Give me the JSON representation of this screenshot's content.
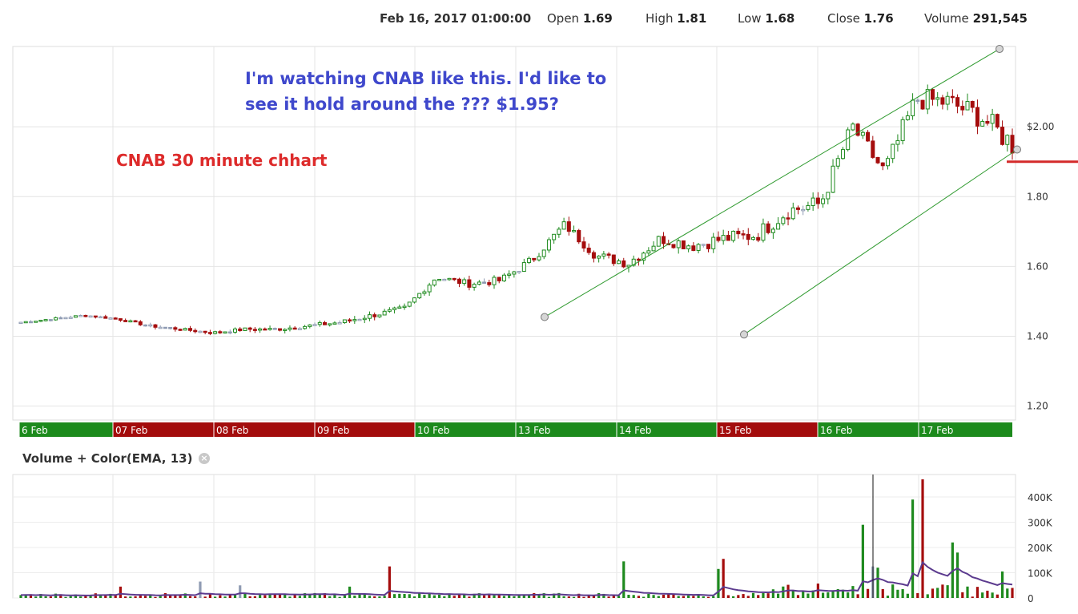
{
  "header": {
    "datetime": "Feb 16, 2017 01:00:00",
    "open_label": "Open",
    "open": "1.69",
    "high_label": "High",
    "high": "1.81",
    "low_label": "Low",
    "low": "1.68",
    "close_label": "Close",
    "close": "1.76",
    "volume_label": "Volume",
    "volume": "291,545"
  },
  "annotations": {
    "line1": "I'm watching CNAB like this.  I'd like to",
    "line2": "see it hold around the ???  $1.95?",
    "chart_label": "CNAB 30 minute chhart"
  },
  "volume_panel": {
    "title": "Volume + Color(EMA, 13)",
    "close_icon": "close-icon"
  },
  "colors": {
    "up": "#1e8a1e",
    "down": "#a50d0d",
    "neutral": "#8f9bb3",
    "trendline": "#2f9a2f",
    "ema": "#5b3a8e",
    "marker": "#d42a2a"
  },
  "chart_data": [
    {
      "type": "candlestick",
      "title": "",
      "y_ticks": [
        "$2.00",
        "1.80",
        "1.60",
        "1.40",
        "1.20"
      ],
      "ylim": [
        1.16,
        2.23
      ],
      "date_labels": [
        {
          "label": "6 Feb",
          "color": "up"
        },
        {
          "label": "07 Feb",
          "color": "down"
        },
        {
          "label": "08 Feb",
          "color": "down"
        },
        {
          "label": "09 Feb",
          "color": "down"
        },
        {
          "label": "10 Feb",
          "color": "up"
        },
        {
          "label": "13 Feb",
          "color": "up"
        },
        {
          "label": "14 Feb",
          "color": "up"
        },
        {
          "label": "15 Feb",
          "color": "down"
        },
        {
          "label": "16 Feb",
          "color": "up"
        },
        {
          "label": "17 Feb",
          "color": "up"
        }
      ],
      "key_prices": [
        1.44,
        1.45,
        1.46,
        1.45,
        1.43,
        1.42,
        1.41,
        1.42,
        1.42,
        1.43,
        1.44,
        1.46,
        1.48,
        1.57,
        1.55,
        1.56,
        1.62,
        1.72,
        1.63,
        1.61,
        1.68,
        1.66,
        1.68,
        1.69,
        1.76,
        1.78,
        2.0,
        1.87,
        2.08,
        2.07,
        2.03,
        1.95
      ],
      "channel": {
        "upper": [
          [
            1.455,
            0.15
          ],
          [
            2.223,
            1.0
          ]
        ],
        "lower": [
          [
            1.405,
            0.35
          ],
          [
            1.935,
            1.0
          ]
        ]
      },
      "support_marker": 1.9
    },
    {
      "type": "bar",
      "title": "Volume + Color(EMA, 13)",
      "y_ticks": [
        "400K",
        "300K",
        "200K",
        "100K",
        "0"
      ],
      "ylim": [
        0,
        470000
      ],
      "spikes": [
        {
          "frac": 0.1,
          "value": 45000,
          "color": "down"
        },
        {
          "frac": 0.18,
          "value": 65000,
          "color": "neutral"
        },
        {
          "frac": 0.22,
          "value": 50000,
          "color": "neutral"
        },
        {
          "frac": 0.33,
          "value": 45000,
          "color": "up"
        },
        {
          "frac": 0.37,
          "value": 125000,
          "color": "down"
        },
        {
          "frac": 0.61,
          "value": 145000,
          "color": "up"
        },
        {
          "frac": 0.705,
          "value": 115000,
          "color": "up"
        },
        {
          "frac": 0.71,
          "value": 155000,
          "color": "down"
        },
        {
          "frac": 0.85,
          "value": 290000,
          "color": "up"
        },
        {
          "frac": 0.858,
          "value": 125000,
          "color": "neutral"
        },
        {
          "frac": 0.865,
          "value": 120000,
          "color": "up"
        },
        {
          "frac": 0.9,
          "value": 390000,
          "color": "up"
        },
        {
          "frac": 0.91,
          "value": 470000,
          "color": "down"
        },
        {
          "frac": 0.94,
          "value": 220000,
          "color": "up"
        },
        {
          "frac": 0.945,
          "value": 180000,
          "color": "up"
        },
        {
          "frac": 0.99,
          "value": 105000,
          "color": "up"
        }
      ]
    }
  ]
}
